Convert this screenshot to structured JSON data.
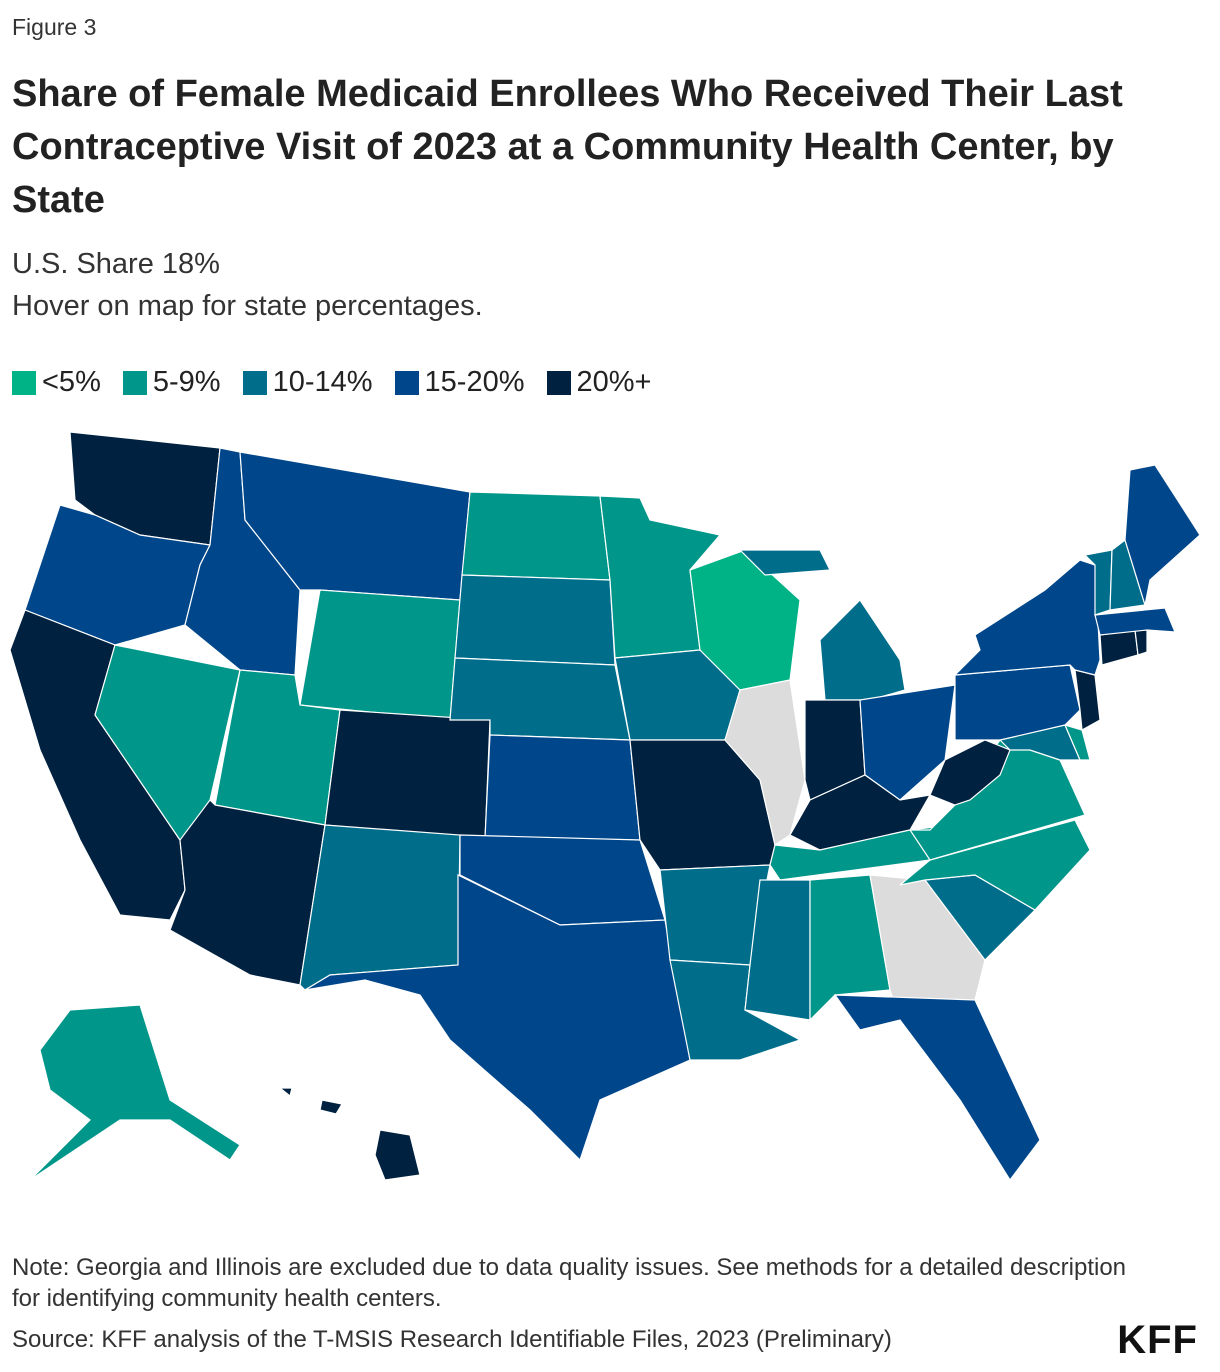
{
  "figure_label": "Figure 3",
  "title": "Share of Female Medicaid Enrollees Who Received Their Last Contraceptive Visit of 2023 at a Community Health Center, by State",
  "subtitle_share": "U.S. Share 18%",
  "subtitle_hover": "Hover on map for state percentages.",
  "legend": [
    {
      "label": "<5%",
      "color": "#00b386"
    },
    {
      "label": "5-9%",
      "color": "#00968a"
    },
    {
      "label": "10-14%",
      "color": "#006e8a"
    },
    {
      "label": "15-20%",
      "color": "#00468a"
    },
    {
      "label": "20%+",
      "color": "#00213f"
    }
  ],
  "excluded_color": "#dcdcdc",
  "states": [
    {
      "abbr": "WA",
      "bin": 4
    },
    {
      "abbr": "OR",
      "bin": 3
    },
    {
      "abbr": "CA",
      "bin": 4
    },
    {
      "abbr": "NV",
      "bin": 1
    },
    {
      "abbr": "ID",
      "bin": 3
    },
    {
      "abbr": "MT",
      "bin": 3
    },
    {
      "abbr": "WY",
      "bin": 1
    },
    {
      "abbr": "UT",
      "bin": 1
    },
    {
      "abbr": "AZ",
      "bin": 4
    },
    {
      "abbr": "CO",
      "bin": 4
    },
    {
      "abbr": "NM",
      "bin": 2
    },
    {
      "abbr": "ND",
      "bin": 1
    },
    {
      "abbr": "SD",
      "bin": 2
    },
    {
      "abbr": "NE",
      "bin": 2
    },
    {
      "abbr": "KS",
      "bin": 3
    },
    {
      "abbr": "OK",
      "bin": 3
    },
    {
      "abbr": "TX",
      "bin": 3
    },
    {
      "abbr": "MN",
      "bin": 1
    },
    {
      "abbr": "IA",
      "bin": 2
    },
    {
      "abbr": "MO",
      "bin": 4
    },
    {
      "abbr": "AR",
      "bin": 2
    },
    {
      "abbr": "LA",
      "bin": 2
    },
    {
      "abbr": "WI",
      "bin": 0
    },
    {
      "abbr": "IL",
      "bin": -1
    },
    {
      "abbr": "MI",
      "bin": 2
    },
    {
      "abbr": "IN",
      "bin": 4
    },
    {
      "abbr": "OH",
      "bin": 3
    },
    {
      "abbr": "KY",
      "bin": 4
    },
    {
      "abbr": "TN",
      "bin": 1
    },
    {
      "abbr": "MS",
      "bin": 2
    },
    {
      "abbr": "AL",
      "bin": 1
    },
    {
      "abbr": "GA",
      "bin": -1
    },
    {
      "abbr": "FL",
      "bin": 3
    },
    {
      "abbr": "SC",
      "bin": 2
    },
    {
      "abbr": "NC",
      "bin": 1
    },
    {
      "abbr": "VA",
      "bin": 1
    },
    {
      "abbr": "WV",
      "bin": 4
    },
    {
      "abbr": "MD",
      "bin": 2
    },
    {
      "abbr": "DE",
      "bin": 1
    },
    {
      "abbr": "PA",
      "bin": 3
    },
    {
      "abbr": "NJ",
      "bin": 4
    },
    {
      "abbr": "NY",
      "bin": 3
    },
    {
      "abbr": "CT",
      "bin": 4
    },
    {
      "abbr": "RI",
      "bin": 4
    },
    {
      "abbr": "MA",
      "bin": 3
    },
    {
      "abbr": "VT",
      "bin": 2
    },
    {
      "abbr": "NH",
      "bin": 2
    },
    {
      "abbr": "ME",
      "bin": 3
    },
    {
      "abbr": "AK",
      "bin": 1
    },
    {
      "abbr": "HI",
      "bin": 4
    }
  ],
  "note": "Note: Georgia and Illinois are excluded due to data quality issues. See methods for a detailed description for identifying community health centers.",
  "source": "Source: KFF analysis of the T-MSIS Research Identifiable Files, 2023 (Preliminary)",
  "logo": "KFF"
}
